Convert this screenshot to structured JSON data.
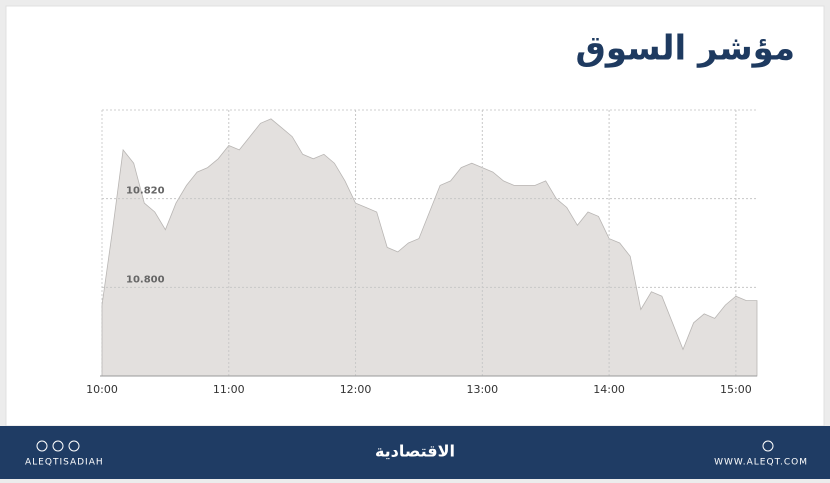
{
  "chart_data": {
    "type": "area",
    "title": "مؤشر السوق",
    "x": [
      "10:00",
      "10:05",
      "10:10",
      "10:15",
      "10:20",
      "10:25",
      "10:30",
      "10:35",
      "10:40",
      "10:45",
      "10:50",
      "10:55",
      "11:00",
      "11:05",
      "11:10",
      "11:15",
      "11:20",
      "11:25",
      "11:30",
      "11:35",
      "11:40",
      "11:45",
      "11:50",
      "11:55",
      "12:00",
      "12:05",
      "12:10",
      "12:15",
      "12:20",
      "12:25",
      "12:30",
      "12:35",
      "12:40",
      "12:45",
      "12:50",
      "12:55",
      "13:00",
      "13:05",
      "13:10",
      "13:15",
      "13:20",
      "13:25",
      "13:30",
      "13:35",
      "13:40",
      "13:45",
      "13:50",
      "13:55",
      "14:00",
      "14:05",
      "14:10",
      "14:15",
      "14:20",
      "14:25",
      "14:30",
      "14:35",
      "14:40",
      "14:45",
      "14:50",
      "14:55",
      "15:00",
      "15:05",
      "15:10"
    ],
    "values": [
      10.796,
      10.813,
      10.831,
      10.828,
      10.819,
      10.817,
      10.813,
      10.819,
      10.823,
      10.826,
      10.827,
      10.829,
      10.832,
      10.831,
      10.834,
      10.837,
      10.838,
      10.836,
      10.834,
      10.83,
      10.829,
      10.83,
      10.828,
      10.824,
      10.819,
      10.818,
      10.817,
      10.809,
      10.808,
      10.81,
      10.811,
      10.817,
      10.823,
      10.824,
      10.827,
      10.828,
      10.827,
      10.826,
      10.824,
      10.823,
      10.823,
      10.823,
      10.824,
      10.82,
      10.818,
      10.814,
      10.817,
      10.816,
      10.811,
      10.81,
      10.807,
      10.795,
      10.799,
      10.798,
      10.792,
      10.786,
      10.792,
      10.794,
      10.793,
      10.796,
      10.798,
      10.797,
      10.797
    ],
    "color": "#e3e0de",
    "line_color": "#b9b6b4",
    "xlim": [
      "10:00",
      "15:10"
    ],
    "xticks": [
      "10:00",
      "11:00",
      "12:00",
      "13:00",
      "14:00",
      "15:00"
    ],
    "ylim": [
      10.78,
      10.84
    ],
    "yticks": [
      {
        "value": 10.8,
        "label": "10.800"
      },
      {
        "value": 10.82,
        "label": "10.820"
      }
    ],
    "grid": true
  },
  "footer": {
    "handle": "ALEQTISADIAH",
    "brand": "الاقتصادية",
    "website": "WWW.ALEQT.COM"
  }
}
